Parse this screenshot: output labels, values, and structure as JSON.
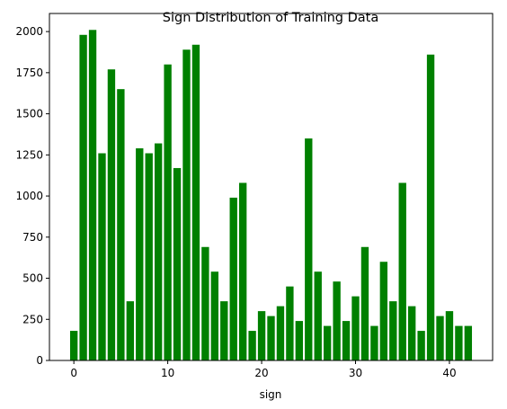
{
  "chart_data": {
    "type": "bar",
    "title": "Sign Distribution of Training Data",
    "xlabel": "sign",
    "ylabel": "",
    "x": [
      0,
      1,
      2,
      3,
      4,
      5,
      6,
      7,
      8,
      9,
      10,
      11,
      12,
      13,
      14,
      15,
      16,
      17,
      18,
      19,
      20,
      21,
      22,
      23,
      24,
      25,
      26,
      27,
      28,
      29,
      30,
      31,
      32,
      33,
      34,
      35,
      36,
      37,
      38,
      39,
      40,
      41,
      42
    ],
    "values": [
      180,
      1980,
      2010,
      1260,
      1770,
      1650,
      360,
      1290,
      1260,
      1320,
      1800,
      1170,
      1890,
      1920,
      690,
      540,
      360,
      990,
      1080,
      180,
      300,
      270,
      330,
      450,
      240,
      1350,
      540,
      210,
      480,
      240,
      390,
      690,
      210,
      600,
      360,
      1080,
      330,
      180,
      1860,
      270,
      300,
      210,
      210
    ],
    "xlim": [
      -2.6,
      44.6
    ],
    "ylim": [
      0,
      2110
    ],
    "xticks": [
      0,
      10,
      20,
      30,
      40
    ],
    "xtick_labels": [
      "0",
      "10",
      "20",
      "30",
      "40"
    ],
    "yticks": [
      0,
      250,
      500,
      750,
      1000,
      1250,
      1500,
      1750,
      2000
    ],
    "ytick_labels": [
      "0",
      "250",
      "500",
      "750",
      "1000",
      "1250",
      "1500",
      "1750",
      "2000"
    ],
    "bar_color": "#008000",
    "grid": false,
    "legend": "none"
  }
}
